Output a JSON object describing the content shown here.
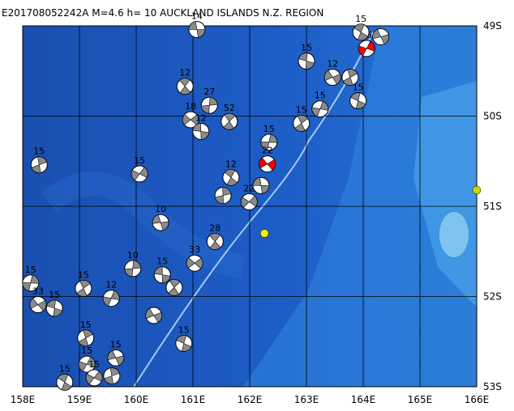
{
  "title": "E201708052242A M=4.6 h= 10 AUCKLAND ISLANDS N.Z. REGION",
  "lon_ticks": [
    {
      "value": 158,
      "label": "158E"
    },
    {
      "value": 159,
      "label": "159E"
    },
    {
      "value": 160,
      "label": "160E"
    },
    {
      "value": 161,
      "label": "161E"
    },
    {
      "value": 162,
      "label": "162E"
    },
    {
      "value": 163,
      "label": "163E"
    },
    {
      "value": 164,
      "label": "164E"
    },
    {
      "value": 165,
      "label": "165E"
    },
    {
      "value": 166,
      "label": "166E"
    }
  ],
  "lat_ticks": [
    {
      "value": 49,
      "label": "49S"
    },
    {
      "value": 50,
      "label": "50S"
    },
    {
      "value": 51,
      "label": "51S"
    },
    {
      "value": 52,
      "label": "52S"
    },
    {
      "value": 53,
      "label": "53S"
    }
  ],
  "lon_range": [
    158,
    166
  ],
  "lat_range": [
    49,
    53
  ],
  "events": [
    {
      "lon": 161.07,
      "lat": 49.04,
      "depth": 14
    },
    {
      "lon": 160.86,
      "lat": 49.67,
      "depth": 12
    },
    {
      "lon": 161.29,
      "lat": 49.88,
      "depth": 27
    },
    {
      "lon": 160.96,
      "lat": 50.04,
      "depth": 18
    },
    {
      "lon": 161.14,
      "lat": 50.17,
      "depth": 12
    },
    {
      "lon": 161.64,
      "lat": 50.06,
      "depth": 52
    },
    {
      "lon": 162.34,
      "lat": 50.29,
      "depth": 15
    },
    {
      "lon": 162.31,
      "lat": 50.53,
      "depth": 22,
      "color": "#ff0000"
    },
    {
      "lon": 163.0,
      "lat": 49.39,
      "depth": 15
    },
    {
      "lon": 162.91,
      "lat": 50.08,
      "depth": 15
    },
    {
      "lon": 163.24,
      "lat": 49.92,
      "depth": 15
    },
    {
      "lon": 163.46,
      "lat": 49.57,
      "depth": 12
    },
    {
      "lon": 163.91,
      "lat": 49.83,
      "depth": 15
    },
    {
      "lon": 163.77,
      "lat": 49.57
    },
    {
      "lon": 164.06,
      "lat": 49.25,
      "depth": 15,
      "color": "#ff0000"
    },
    {
      "lon": 164.31,
      "lat": 49.12
    },
    {
      "lon": 163.96,
      "lat": 49.07,
      "depth": 15
    },
    {
      "lon": 158.29,
      "lat": 50.54,
      "depth": 15
    },
    {
      "lon": 160.06,
      "lat": 50.64,
      "depth": 15
    },
    {
      "lon": 160.43,
      "lat": 51.18,
      "depth": 10
    },
    {
      "lon": 161.67,
      "lat": 50.68,
      "depth": 12
    },
    {
      "lon": 161.53,
      "lat": 50.88
    },
    {
      "lon": 161.99,
      "lat": 50.95,
      "depth": 22
    },
    {
      "lon": 162.2,
      "lat": 50.77
    },
    {
      "lon": 161.39,
      "lat": 51.39,
      "depth": 28
    },
    {
      "lon": 159.94,
      "lat": 51.69,
      "depth": 10
    },
    {
      "lon": 161.03,
      "lat": 51.63,
      "depth": 33
    },
    {
      "lon": 160.46,
      "lat": 51.76,
      "depth": 15
    },
    {
      "lon": 160.67,
      "lat": 51.9
    },
    {
      "lon": 158.14,
      "lat": 51.85,
      "depth": 15
    },
    {
      "lon": 158.27,
      "lat": 52.09,
      "depth": 33
    },
    {
      "lon": 158.56,
      "lat": 52.13,
      "depth": 15
    },
    {
      "lon": 159.07,
      "lat": 51.91,
      "depth": 15
    },
    {
      "lon": 159.56,
      "lat": 52.02,
      "depth": 12
    },
    {
      "lon": 160.31,
      "lat": 52.21
    },
    {
      "lon": 160.84,
      "lat": 52.52,
      "depth": 15
    },
    {
      "lon": 159.11,
      "lat": 52.46,
      "depth": 15
    },
    {
      "lon": 159.13,
      "lat": 52.75,
      "depth": 15
    },
    {
      "lon": 159.64,
      "lat": 52.68,
      "depth": 15
    },
    {
      "lon": 158.74,
      "lat": 52.95,
      "depth": 15
    },
    {
      "lon": 159.57,
      "lat": 52.88
    },
    {
      "lon": 159.26,
      "lat": 52.9,
      "depth": 15
    }
  ],
  "markers": [
    {
      "lon": 162.26,
      "lat": 51.3,
      "color": "#ffee00"
    },
    {
      "lon": 166.0,
      "lat": 50.82,
      "color": "#c8d800"
    }
  ]
}
